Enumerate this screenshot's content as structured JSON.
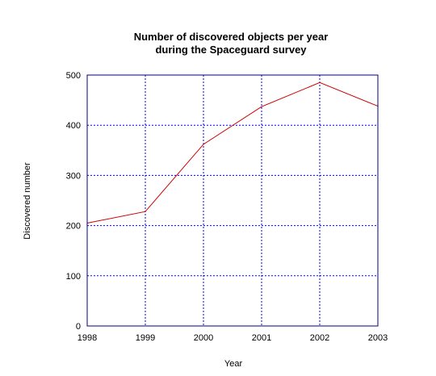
{
  "chart_data": {
    "type": "line",
    "title": [
      "Number of discovered objects per year",
      "during the Spaceguard survey"
    ],
    "xlabel": "Year",
    "ylabel": "Discovered number",
    "x_ticks": [
      "1998",
      "1999",
      "2000",
      "2001",
      "2002",
      "2003"
    ],
    "y_ticks": [
      "0",
      "100",
      "200",
      "300",
      "400",
      "500"
    ],
    "xlim": [
      1998,
      2003
    ],
    "ylim": [
      0,
      500
    ],
    "grid": true,
    "legend": "none",
    "series": [
      {
        "x": [
          1998,
          1999,
          2000,
          2001,
          2002,
          2003
        ],
        "values": [
          205,
          228,
          362,
          437,
          485,
          438
        ],
        "color": "#cc0000"
      }
    ],
    "colors": {
      "frame": "#000080",
      "grid": "#0000ff",
      "line": "#cc0000"
    }
  }
}
